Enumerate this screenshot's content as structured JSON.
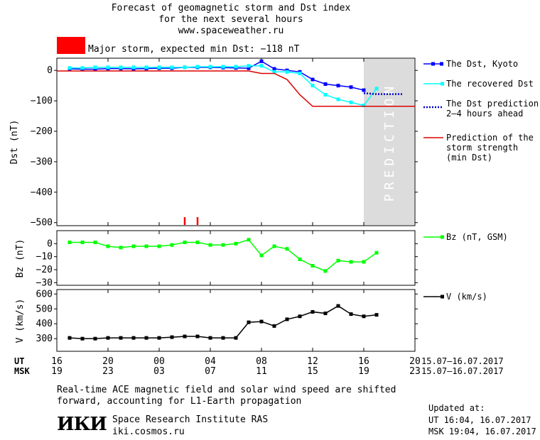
{
  "header": {
    "title_line1": "Forecast of geomagnetic storm and Dst index",
    "title_line2": "for the next several hours",
    "title_line3": "www.spaceweather.ru",
    "storm_label": "Major storm, expected min Dst: −118 nT",
    "storm_color": "#ff0000"
  },
  "legend": {
    "dst_kyoto": "The Dst, Kyoto",
    "dst_recovered": "The recovered Dst",
    "dst_prediction_l1": "The Dst prediction",
    "dst_prediction_l2": "2–4 hours ahead",
    "storm_strength_l1": "Prediction of the",
    "storm_strength_l2": "storm strength",
    "storm_strength_l3": "(min Dst)",
    "bz": "Bz (nT, GSM)",
    "v": "V (km/s)",
    "prediction_zone_text": "PREDICTION"
  },
  "footer": {
    "ut_label": "UT",
    "msk_label": "MSK",
    "ut_ticks": [
      "16",
      "20",
      "00",
      "04",
      "08",
      "12",
      "16",
      "20"
    ],
    "msk_ticks": [
      "19",
      "23",
      "03",
      "07",
      "11",
      "15",
      "19",
      "23"
    ],
    "ut_range": "15.07–16.07.2017",
    "msk_range": "15.07–16.07.2017",
    "note_line1": "Real-time ACE magnetic field and solar wind speed are shifted",
    "note_line2": "forward, accounting for L1-Earth propagation",
    "institute_logo": "ИКИ",
    "institute_name": "Space Research Institute RAS",
    "institute_url": "iki.cosmos.ru",
    "updated_label": "Updated at:",
    "updated_ut": "UT  16:04, 16.07.2017",
    "updated_msk": "MSK 19:04, 16.07.2017"
  },
  "chart_data": [
    {
      "type": "line",
      "ylabel": "Dst (nT)",
      "xlim": [
        16,
        44
      ],
      "ylim": [
        -510,
        40
      ],
      "yticks": [
        0,
        -100,
        -200,
        -300,
        -400,
        -500
      ],
      "xticks": [
        16,
        20,
        24,
        28,
        32,
        36,
        40,
        44
      ],
      "prediction_zone": [
        40,
        44
      ],
      "storm_onset_markers": [
        26,
        27
      ],
      "series": [
        {
          "name": "The Dst, Kyoto",
          "color": "#0000ff",
          "x": [
            17,
            18,
            19,
            20,
            21,
            22,
            23,
            24,
            25,
            26,
            27,
            28,
            29,
            30,
            31,
            32,
            33,
            34,
            35,
            36,
            37,
            38,
            39,
            40
          ],
          "y": [
            5,
            4,
            4,
            6,
            6,
            5,
            6,
            7,
            7,
            10,
            10,
            10,
            9,
            8,
            7,
            30,
            5,
            0,
            -5,
            -30,
            -45,
            -50,
            -55,
            -65
          ]
        },
        {
          "name": "The recovered Dst",
          "color": "#00ffff",
          "x": [
            17,
            18,
            19,
            20,
            21,
            22,
            23,
            24,
            25,
            26,
            27,
            28,
            29,
            30,
            31,
            32,
            33,
            34,
            35,
            36,
            37,
            38,
            39,
            40,
            41
          ],
          "y": [
            8,
            8,
            10,
            10,
            10,
            10,
            10,
            10,
            10,
            10,
            12,
            12,
            12,
            12,
            15,
            15,
            -5,
            -5,
            -10,
            -50,
            -80,
            -95,
            -105,
            -115,
            -60
          ]
        },
        {
          "name": "The Dst prediction 2–4 hours ahead",
          "color": "#0000cc",
          "dashed": true,
          "x": [
            40,
            41,
            42,
            43
          ],
          "y": [
            -75,
            -78,
            -78,
            -78
          ]
        },
        {
          "name": "Prediction of the storm strength (min Dst)",
          "color": "#dd0000",
          "x": [
            16,
            31,
            32,
            33,
            34,
            35,
            36,
            40,
            44
          ],
          "y": [
            -2,
            -2,
            -10,
            -10,
            -30,
            -80,
            -118,
            -118,
            -118
          ]
        }
      ]
    },
    {
      "type": "line",
      "ylabel": "Bz (nT)",
      "xlim": [
        16,
        44
      ],
      "ylim": [
        -32,
        10
      ],
      "yticks": [
        0,
        -10,
        -20,
        -30
      ],
      "series": [
        {
          "name": "Bz (nT, GSM)",
          "color": "#00ff00",
          "x": [
            17,
            18,
            19,
            20,
            21,
            22,
            23,
            24,
            25,
            26,
            27,
            28,
            29,
            30,
            31,
            32,
            33,
            34,
            35,
            36,
            37,
            38,
            39,
            40,
            41
          ],
          "y": [
            1,
            1,
            1,
            -2,
            -3,
            -2,
            -2,
            -2,
            -1,
            1,
            1,
            -1,
            -1,
            0,
            3,
            -9,
            -2,
            -4,
            -12,
            -17,
            -21,
            -13,
            -14,
            -14,
            -7
          ]
        }
      ]
    },
    {
      "type": "line",
      "ylabel": "V (km/s)",
      "xlim": [
        16,
        44
      ],
      "ylim": [
        215,
        630
      ],
      "yticks": [
        300,
        400,
        500,
        600
      ],
      "series": [
        {
          "name": "V (km/s)",
          "color": "#000000",
          "x": [
            17,
            18,
            19,
            20,
            21,
            22,
            23,
            24,
            25,
            26,
            27,
            28,
            29,
            30,
            31,
            32,
            33,
            34,
            35,
            36,
            37,
            38,
            39,
            40,
            41
          ],
          "y": [
            305,
            300,
            300,
            305,
            305,
            305,
            305,
            305,
            310,
            315,
            315,
            305,
            305,
            305,
            410,
            415,
            385,
            430,
            450,
            480,
            470,
            520,
            465,
            450,
            460
          ]
        }
      ]
    }
  ]
}
